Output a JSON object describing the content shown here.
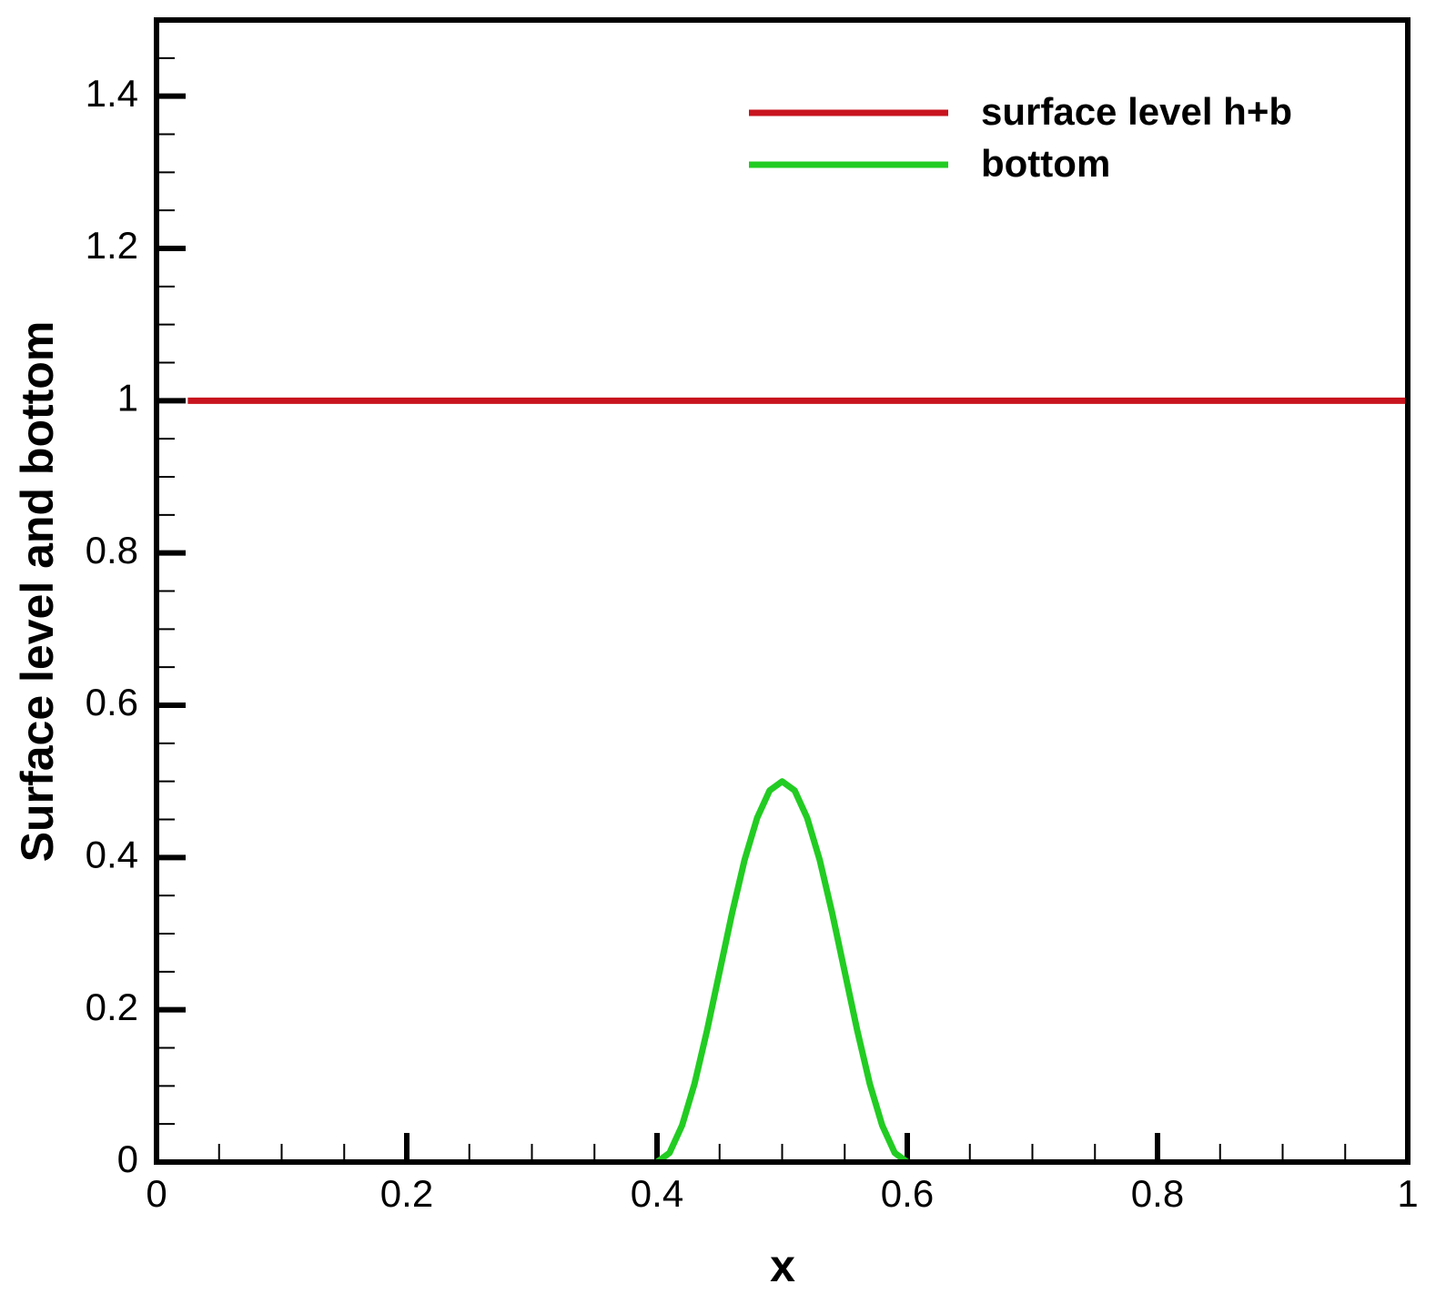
{
  "chart_data": {
    "type": "line",
    "x_label": "x",
    "y_label": "Surface level and bottom",
    "xlim": [
      0,
      1
    ],
    "ylim": [
      0,
      1.5
    ],
    "xticks": [
      0,
      0.2,
      0.4,
      0.6,
      0.8,
      1
    ],
    "yticks": [
      0,
      0.2,
      0.4,
      0.6,
      0.8,
      1,
      1.2,
      1.4
    ],
    "xticks_minor": [
      0.05,
      0.1,
      0.15,
      0.25,
      0.3,
      0.35,
      0.45,
      0.5,
      0.55,
      0.65,
      0.7,
      0.75,
      0.85,
      0.9,
      0.95
    ],
    "yticks_minor": [
      0.05,
      0.1,
      0.15,
      0.25,
      0.3,
      0.35,
      0.45,
      0.5,
      0.55,
      0.65,
      0.7,
      0.75,
      0.85,
      0.9,
      0.95,
      1.05,
      1.1,
      1.15,
      1.25,
      1.3,
      1.35,
      1.45
    ],
    "legend": "upper right",
    "series": [
      {
        "name": "surface level h+b",
        "color": "#c8141e",
        "x": [
          0.025,
          1
        ],
        "values": [
          1,
          1
        ]
      },
      {
        "name": "bottom",
        "color": "#22cc22",
        "x": [
          0.4,
          0.41,
          0.42,
          0.43,
          0.44,
          0.45,
          0.46,
          0.47,
          0.48,
          0.49,
          0.5,
          0.51,
          0.52,
          0.53,
          0.54,
          0.55,
          0.56,
          0.57,
          0.58,
          0.59,
          0.6
        ],
        "values": [
          0,
          0.012,
          0.048,
          0.103,
          0.173,
          0.25,
          0.327,
          0.397,
          0.452,
          0.488,
          0.5,
          0.488,
          0.452,
          0.397,
          0.327,
          0.25,
          0.173,
          0.103,
          0.048,
          0.012,
          0
        ]
      }
    ]
  }
}
